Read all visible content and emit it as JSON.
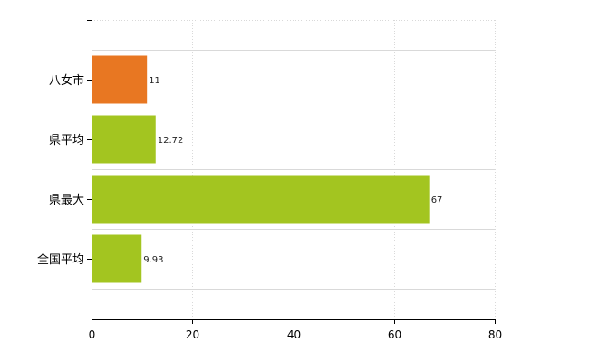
{
  "chart_data": {
    "type": "bar",
    "orientation": "horizontal",
    "categories": [
      "八女市",
      "県平均",
      "県最大",
      "全国平均"
    ],
    "values": [
      11,
      12.72,
      67,
      9.93
    ],
    "data_labels": [
      "11",
      "12.72",
      "67",
      "9.93"
    ],
    "bar_colors": [
      "#e87722",
      "#a3c520",
      "#a3c520",
      "#a3c520"
    ],
    "title": "",
    "xlabel": "",
    "ylabel": "",
    "xlim": [
      0,
      80
    ],
    "x_ticks": [
      0,
      20,
      40,
      60,
      80
    ],
    "x_tick_labels": [
      "0",
      "20",
      "40",
      "60",
      "80"
    ],
    "grid": true,
    "legend": "none"
  }
}
